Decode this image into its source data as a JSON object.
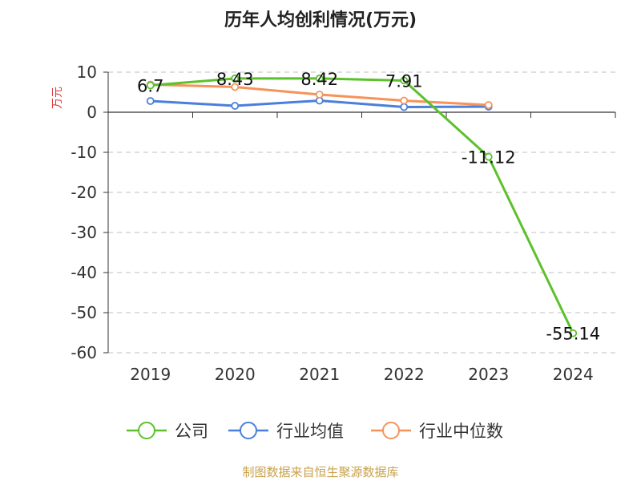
{
  "chart_data": {
    "type": "line",
    "title": "历年人均创利情况(万元)",
    "ylabel": "万元",
    "x": [
      "2019",
      "2020",
      "2021",
      "2022",
      "2023",
      "2024"
    ],
    "ylim": [
      -60,
      10
    ],
    "yticks": [
      10,
      0,
      -10,
      -20,
      -30,
      -40,
      -50,
      -60
    ],
    "grid": true,
    "legend_position": "bottom",
    "series": [
      {
        "name": "公司",
        "color": "#5cc12c",
        "values": [
          6.7,
          8.43,
          8.42,
          7.91,
          -11.12,
          -55.14
        ],
        "labels": [
          "6.7",
          "8.43",
          "8.42",
          "7.91",
          "-11.12",
          "-55.14"
        ]
      },
      {
        "name": "行业均值",
        "color": "#4a7fdc",
        "values": [
          2.8,
          1.6,
          2.9,
          1.3,
          1.4,
          null
        ]
      },
      {
        "name": "行业中位数",
        "color": "#f5935a",
        "values": [
          6.9,
          6.3,
          4.4,
          2.9,
          1.8,
          null
        ]
      }
    ]
  },
  "source": "制图数据来自恒生聚源数据库"
}
